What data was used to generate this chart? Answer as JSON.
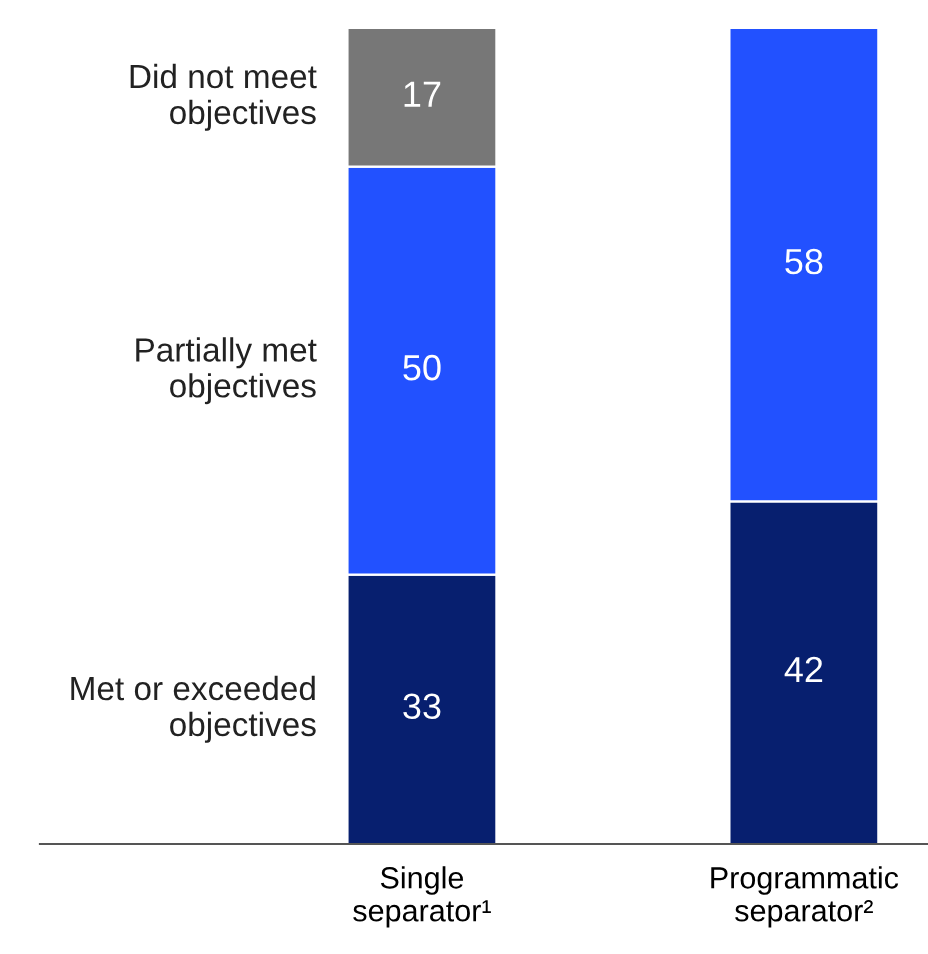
{
  "chart_data": {
    "type": "bar",
    "stacked": true,
    "data_labels": true,
    "legend": false,
    "grid": false,
    "categories": [
      "Single separator¹",
      "Programmatic separator²"
    ],
    "series": [
      {
        "name": "Met or exceeded\nobjectives",
        "color": "#071f6f",
        "values": [
          33,
          42
        ]
      },
      {
        "name": "Partially met\nobjectives",
        "color": "#2251ff",
        "values": [
          50,
          58
        ]
      },
      {
        "name": "Did not meet\nobjectives",
        "color": "#777777",
        "values": [
          17,
          null
        ]
      }
    ]
  }
}
